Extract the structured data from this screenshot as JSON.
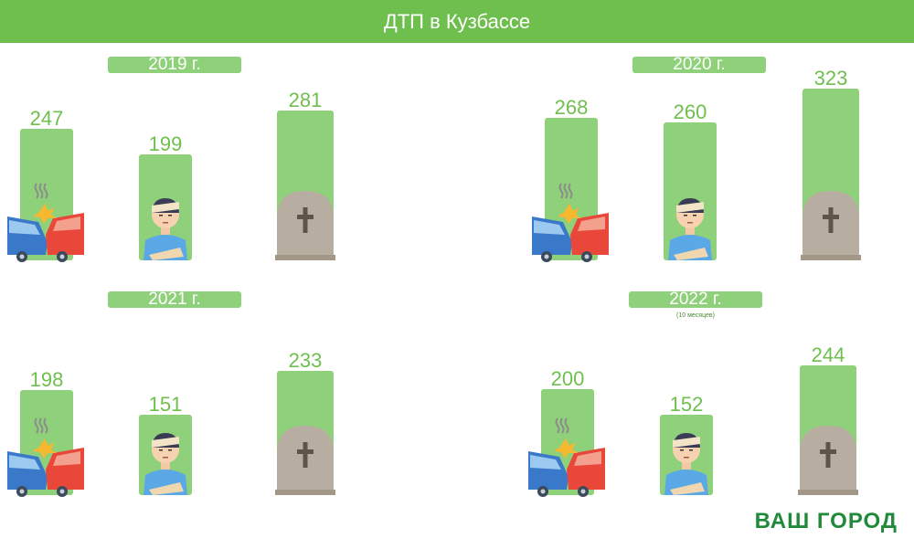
{
  "header": {
    "title": "ДТП в Кузбассе"
  },
  "brand": "ВАШ ГОРОД",
  "colors": {
    "header_bg": "#6fbf4e",
    "bar": "#8fd07a",
    "label": "#6fbf4e",
    "tombstone": "#b7ada0"
  },
  "icons": [
    "car-crash-icon",
    "injured-person-icon",
    "tombstone-icon"
  ],
  "chart_data": [
    {
      "type": "bar",
      "title": "2019 г.",
      "note": "",
      "categories": [
        "car-crash-icon",
        "injured-person-icon",
        "tombstone-icon"
      ],
      "values": [
        247,
        199,
        281
      ],
      "labels": [
        "247",
        "199",
        "281"
      ]
    },
    {
      "type": "bar",
      "title": "2020 г.",
      "note": "",
      "categories": [
        "car-crash-icon",
        "injured-person-icon",
        "tombstone-icon"
      ],
      "values": [
        268,
        260,
        323
      ],
      "labels": [
        "268",
        "260",
        "323"
      ]
    },
    {
      "type": "bar",
      "title": "2021 г.",
      "note": "",
      "categories": [
        "car-crash-icon",
        "injured-person-icon",
        "tombstone-icon"
      ],
      "values": [
        198,
        151,
        233
      ],
      "labels": [
        "198",
        "151",
        "233"
      ]
    },
    {
      "type": "bar",
      "title": "2022 г.",
      "note": "(10 месяцев)",
      "categories": [
        "car-crash-icon",
        "injured-person-icon",
        "tombstone-icon"
      ],
      "values": [
        200,
        152,
        244
      ],
      "labels": [
        "200",
        "152",
        "244"
      ]
    }
  ]
}
